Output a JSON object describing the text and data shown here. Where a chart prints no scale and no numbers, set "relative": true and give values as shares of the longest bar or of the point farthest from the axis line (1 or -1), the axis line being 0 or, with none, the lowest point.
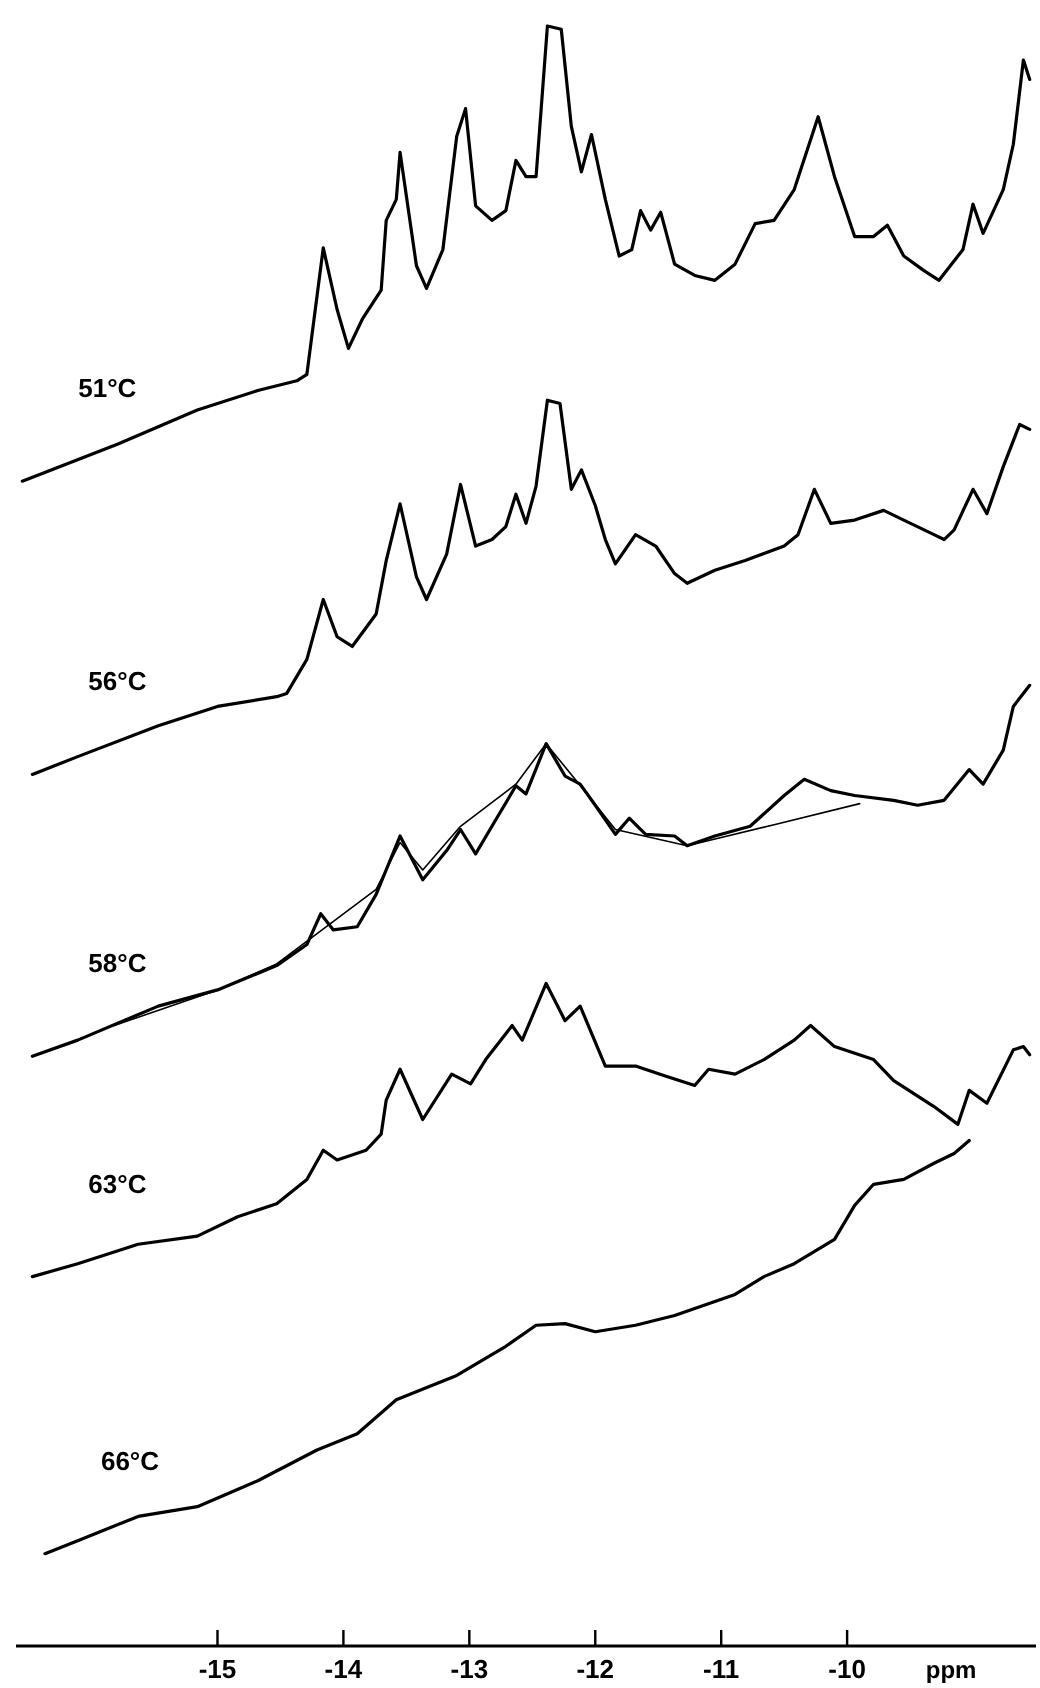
{
  "chart_data": {
    "type": "line",
    "relative": true,
    "xlabel": "ppm",
    "xlim": [
      -16.6,
      -8.5
    ],
    "xticks": [
      -15,
      -14,
      -13,
      -12,
      -11,
      -10
    ],
    "series": [
      {
        "name": "51°C",
        "color": "#000000",
        "x": [
          -16.55,
          -15.79,
          -15.16,
          -14.68,
          -14.37,
          -14.29,
          -14.16,
          -14.05,
          -13.96,
          -13.85,
          -13.7,
          -13.66,
          -13.58,
          -13.55,
          -13.42,
          -13.34,
          -13.21,
          -13.1,
          -13.03,
          -12.95,
          -12.82,
          -12.71,
          -12.63,
          -12.55,
          -12.47,
          -12.38,
          -12.27,
          -12.19,
          -12.11,
          -12.03,
          -11.92,
          -11.81,
          -11.71,
          -11.64,
          -11.56,
          -11.48,
          -11.37,
          -11.21,
          -11.05,
          -10.89,
          -10.73,
          -10.58,
          -10.42,
          -10.23,
          -10.1,
          -9.94,
          -9.79,
          -9.68,
          -9.55,
          -9.39,
          -9.27,
          -9.08,
          -9.0,
          -8.92,
          -8.76,
          -8.68,
          -8.6,
          -8.55
        ],
        "values": [
          0.719,
          0.742,
          0.763,
          0.775,
          0.781,
          0.785,
          0.863,
          0.825,
          0.801,
          0.819,
          0.837,
          0.88,
          0.893,
          0.922,
          0.852,
          0.838,
          0.862,
          0.932,
          0.949,
          0.889,
          0.88,
          0.886,
          0.917,
          0.907,
          0.907,
          1,
          0.998,
          0.938,
          0.91,
          0.933,
          0.893,
          0.858,
          0.862,
          0.886,
          0.874,
          0.885,
          0.853,
          0.846,
          0.843,
          0.853,
          0.878,
          0.88,
          0.899,
          0.944,
          0.907,
          0.87,
          0.87,
          0.877,
          0.858,
          0.849,
          0.843,
          0.862,
          0.89,
          0.872,
          0.899,
          0.927,
          0.979,
          0.967
        ]
      },
      {
        "name": "56°C",
        "color": "#000000",
        "x": [
          -16.47,
          -16.11,
          -15.47,
          -15.0,
          -14.53,
          -14.45,
          -14.29,
          -14.16,
          -14.05,
          -13.93,
          -13.74,
          -13.66,
          -13.55,
          -13.42,
          -13.34,
          -13.18,
          -13.07,
          -12.95,
          -12.82,
          -12.71,
          -12.63,
          -12.55,
          -12.47,
          -12.38,
          -12.28,
          -12.19,
          -12.11,
          -12.0,
          -11.92,
          -11.84,
          -11.68,
          -11.52,
          -11.37,
          -11.27,
          -11.05,
          -10.81,
          -10.5,
          -10.39,
          -10.26,
          -10.13,
          -9.94,
          -9.71,
          -9.55,
          -9.31,
          -9.23,
          -9.15,
          -9.0,
          -8.89,
          -8.76,
          -8.63,
          -8.55
        ],
        "values": [
          0.538,
          0.549,
          0.568,
          0.58,
          0.586,
          0.588,
          0.609,
          0.646,
          0.623,
          0.617,
          0.637,
          0.67,
          0.705,
          0.66,
          0.646,
          0.674,
          0.717,
          0.679,
          0.683,
          0.691,
          0.711,
          0.693,
          0.716,
          0.769,
          0.767,
          0.714,
          0.726,
          0.704,
          0.683,
          0.668,
          0.686,
          0.679,
          0.662,
          0.656,
          0.664,
          0.67,
          0.679,
          0.686,
          0.714,
          0.693,
          0.695,
          0.701,
          0.695,
          0.686,
          0.683,
          0.689,
          0.714,
          0.699,
          0.728,
          0.754,
          0.751
        ]
      },
      {
        "name": "58°C",
        "color": "#000000",
        "x": [
          -16.47,
          -16.11,
          -15.47,
          -15.0,
          -14.53,
          -14.29,
          -14.18,
          -14.08,
          -13.89,
          -13.74,
          -13.55,
          -13.37,
          -13.18,
          -13.07,
          -12.95,
          -12.79,
          -12.63,
          -12.55,
          -12.39,
          -12.24,
          -12.12,
          -12.0,
          -11.84,
          -11.73,
          -11.6,
          -11.37,
          -11.27,
          -11.05,
          -10.77,
          -10.5,
          -10.34,
          -10.13,
          -9.94,
          -9.63,
          -9.44,
          -9.23,
          -9.03,
          -8.92,
          -8.76,
          -8.68,
          -8.55
        ],
        "values": [
          0.364,
          0.374,
          0.395,
          0.405,
          0.42,
          0.433,
          0.452,
          0.442,
          0.444,
          0.464,
          0.5,
          0.473,
          0.491,
          0.504,
          0.489,
          0.51,
          0.531,
          0.526,
          0.557,
          0.537,
          0.532,
          0.519,
          0.501,
          0.511,
          0.501,
          0.5,
          0.494,
          0.5,
          0.506,
          0.525,
          0.535,
          0.528,
          0.525,
          0.522,
          0.519,
          0.522,
          0.541,
          0.532,
          0.553,
          0.58,
          0.593
        ]
      },
      {
        "color": "#000000",
        "x": [
          -15.82,
          -15.0,
          -14.53,
          -13.74,
          -13.55,
          -13.37,
          -13.07,
          -12.63,
          -12.39,
          -12.16,
          -11.84,
          -11.27,
          -10.58,
          -9.9
        ],
        "values": [
          0.383,
          0.405,
          0.421,
          0.467,
          0.496,
          0.479,
          0.506,
          0.532,
          0.557,
          0.535,
          0.504,
          0.494,
          0.507,
          0.52
        ]
      },
      {
        "name": "63°C",
        "color": "#000000",
        "x": [
          -16.47,
          -16.11,
          -15.63,
          -15.16,
          -14.84,
          -14.53,
          -14.29,
          -14.16,
          -14.05,
          -13.82,
          -13.7,
          -13.66,
          -13.55,
          -13.37,
          -13.14,
          -12.99,
          -12.87,
          -12.66,
          -12.58,
          -12.39,
          -12.24,
          -12.12,
          -11.92,
          -11.68,
          -11.45,
          -11.21,
          -11.1,
          -10.89,
          -10.66,
          -10.42,
          -10.29,
          -10.1,
          -9.79,
          -9.63,
          -9.31,
          -9.12,
          -9.03,
          -8.89,
          -8.68,
          -8.6,
          -8.55
        ],
        "values": [
          0.228,
          0.236,
          0.248,
          0.253,
          0.265,
          0.273,
          0.288,
          0.306,
          0.3,
          0.306,
          0.316,
          0.337,
          0.356,
          0.325,
          0.353,
          0.347,
          0.362,
          0.383,
          0.374,
          0.409,
          0.386,
          0.395,
          0.358,
          0.358,
          0.352,
          0.346,
          0.356,
          0.353,
          0.362,
          0.374,
          0.383,
          0.37,
          0.362,
          0.349,
          0.333,
          0.322,
          0.343,
          0.335,
          0.368,
          0.37,
          0.365
        ]
      },
      {
        "name": "66°C",
        "color": "#000000",
        "x": [
          -16.37,
          -16.11,
          -15.63,
          -15.16,
          -14.68,
          -14.21,
          -13.89,
          -13.58,
          -13.1,
          -12.71,
          -12.47,
          -12.24,
          -12.0,
          -11.68,
          -11.37,
          -10.89,
          -10.66,
          -10.42,
          -10.1,
          -9.94,
          -9.79,
          -9.55,
          -9.31,
          -9.15,
          -9.03
        ],
        "values": [
          0.057,
          0.065,
          0.08,
          0.086,
          0.102,
          0.121,
          0.131,
          0.152,
          0.167,
          0.185,
          0.198,
          0.199,
          0.194,
          0.198,
          0.204,
          0.217,
          0.228,
          0.236,
          0.251,
          0.272,
          0.285,
          0.288,
          0.298,
          0.304,
          0.312
        ]
      }
    ]
  }
}
